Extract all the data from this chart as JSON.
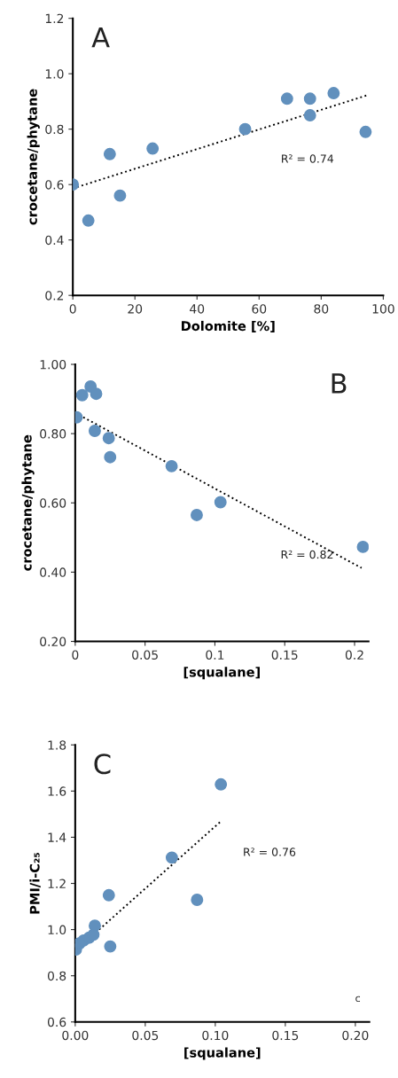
{
  "chart_data": [
    {
      "type": "scatter",
      "xlabel": "Dolomite [%]",
      "ylabel": "crocetane/phytane",
      "xlim": [
        0,
        100
      ],
      "xticks": [
        0,
        20,
        40,
        60,
        80,
        100
      ],
      "ylim": [
        0.2,
        1.2
      ],
      "yticks": [
        {
          "value": 0.2,
          "label": "0.2"
        },
        {
          "value": 0.4,
          "label": "0.4"
        },
        {
          "value": 0.6,
          "label": "0.6"
        },
        {
          "value": 0.8,
          "label": "0.8"
        },
        {
          "value": 1.0,
          "label": "1.0"
        },
        {
          "value": 1.2,
          "label": "1.2"
        }
      ],
      "annotations": [
        "A",
        "R² = 0.74"
      ],
      "series": [
        {
          "color": "#6190bd",
          "marker": "circle",
          "x": [
            0,
            5.0,
            11.9,
            15.2,
            25.7,
            55.5,
            69.0,
            76.4,
            76.4,
            84.0,
            94.3
          ],
          "values": [
            0.6,
            0.47,
            0.71,
            0.56,
            0.73,
            0.8,
            0.91,
            0.91,
            0.85,
            0.93,
            0.79
          ]
        },
        {
          "type": "line",
          "color": "#000000",
          "line_style": "dotted",
          "x": [
            0,
            95
          ],
          "values": [
            0.586,
            0.923
          ]
        }
      ]
    },
    {
      "type": "scatter",
      "xlabel": "[squalane]",
      "ylabel": "crocetane/phytane",
      "xlim": [
        0,
        0.21
      ],
      "xticks": [
        0,
        0.05,
        0.1,
        0.15,
        0.2
      ],
      "ylim": [
        0.2,
        1.0
      ],
      "yticks": [
        {
          "value": 0.2,
          "label": "0.20"
        },
        {
          "value": 0.4,
          "label": "0.40"
        },
        {
          "value": 0.6,
          "label": "0.60"
        },
        {
          "value": 0.8,
          "label": "0.80"
        },
        {
          "value": 1.0,
          "label": "1.00"
        }
      ],
      "annotations": [
        "B",
        "R² = 0.82"
      ],
      "series": [
        {
          "color": "#6190bd",
          "marker": "circle",
          "x": [
            0.001,
            0.005,
            0.011,
            0.015,
            0.014,
            0.024,
            0.025,
            0.069,
            0.087,
            0.104,
            0.206
          ],
          "values": [
            0.847,
            0.911,
            0.936,
            0.915,
            0.808,
            0.787,
            0.732,
            0.706,
            0.565,
            0.602,
            0.473
          ]
        },
        {
          "type": "line",
          "color": "#000000",
          "line_style": "dotted",
          "x": [
            0,
            0.205
          ],
          "values": [
            0.86,
            0.412
          ]
        }
      ]
    },
    {
      "type": "scatter",
      "xlabel": "[squalane]",
      "ylabel": "PMI/i-C₂₅",
      "xlim": [
        0,
        0.21
      ],
      "xticks": [
        {
          "value": 0,
          "label": "0.00"
        },
        {
          "value": 0.05,
          "label": "0.05"
        },
        {
          "value": 0.1,
          "label": "0.10"
        },
        {
          "value": 0.15,
          "label": "0.15"
        },
        {
          "value": 0.2,
          "label": "0.20"
        }
      ],
      "ylim": [
        0.6,
        1.8
      ],
      "yticks": [
        {
          "value": 0.6,
          "label": "0.6"
        },
        {
          "value": 0.8,
          "label": "0.8"
        },
        {
          "value": 1.0,
          "label": "1.0"
        },
        {
          "value": 1.2,
          "label": "1.2"
        },
        {
          "value": 1.4,
          "label": "1.4"
        },
        {
          "value": 1.6,
          "label": "1.6"
        },
        {
          "value": 1.8,
          "label": "1.8"
        }
      ],
      "annotations": [
        "C",
        "R² = 0.76",
        "c"
      ],
      "series": [
        {
          "color": "#6190bd",
          "marker": "circle",
          "x": [
            0.0005,
            0.003,
            0.006,
            0.01,
            0.013,
            0.014,
            0.024,
            0.025,
            0.069,
            0.087,
            0.104
          ],
          "values": [
            0.914,
            0.94,
            0.953,
            0.965,
            0.978,
            1.017,
            1.149,
            0.927,
            1.312,
            1.129,
            1.629
          ]
        },
        {
          "type": "line",
          "color": "#000000",
          "line_style": "dotted",
          "x": [
            0,
            0.104
          ],
          "values": [
            0.908,
            1.469
          ]
        }
      ]
    }
  ]
}
